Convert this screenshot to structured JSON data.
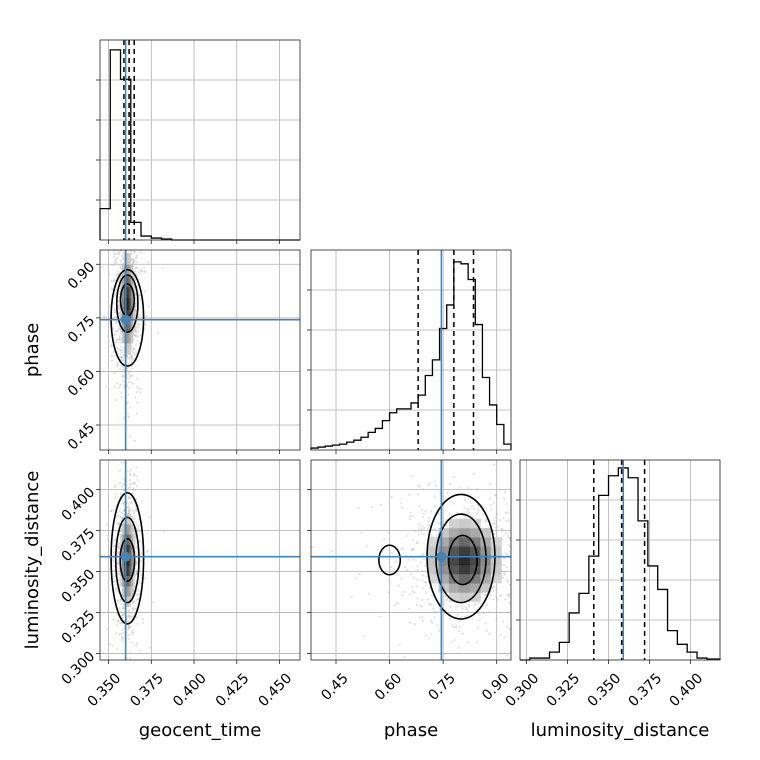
{
  "chart_data": {
    "type": "corner",
    "parameters": [
      "geocent_time",
      "phase",
      "luminosity_distance"
    ],
    "axis_labels": {
      "geocent_time": "geocent_time",
      "phase": "phase",
      "luminosity_distance": "luminosity_distance"
    },
    "ranges": {
      "geocent_time": [
        0.345,
        0.462
      ],
      "phase": [
        0.38,
        0.94
      ],
      "luminosity_distance": [
        0.296,
        0.418
      ]
    },
    "ticks": {
      "geocent_time": [
        "0.350",
        "0.375",
        "0.400",
        "0.425",
        "0.450"
      ],
      "phase": [
        "0.45",
        "0.60",
        "0.75",
        "0.90"
      ],
      "luminosity_distance": [
        "0.300",
        "0.325",
        "0.350",
        "0.375",
        "0.400"
      ]
    },
    "truths": {
      "geocent_time": 0.36,
      "phase": 0.745,
      "luminosity_distance": 0.359
    },
    "quantiles": {
      "geocent_time": [
        0.359,
        0.362,
        0.365
      ],
      "phase": [
        0.68,
        0.78,
        0.835
      ],
      "luminosity_distance": [
        0.341,
        0.358,
        0.372
      ]
    },
    "histograms": {
      "geocent_time": {
        "bin_edges": [
          0.345,
          0.351,
          0.357,
          0.363,
          0.369,
          0.375,
          0.381,
          0.387,
          0.462
        ],
        "counts": [
          0.16,
          0.97,
          0.82,
          0.09,
          0.02,
          0.01,
          0.005,
          0.0
        ]
      },
      "phase": {
        "bin_edges": [
          0.38,
          0.4,
          0.42,
          0.44,
          0.46,
          0.48,
          0.5,
          0.52,
          0.54,
          0.56,
          0.58,
          0.6,
          0.62,
          0.64,
          0.66,
          0.68,
          0.7,
          0.72,
          0.74,
          0.76,
          0.78,
          0.8,
          0.82,
          0.84,
          0.86,
          0.88,
          0.9,
          0.92,
          0.94
        ],
        "counts": [
          0.01,
          0.015,
          0.02,
          0.025,
          0.03,
          0.04,
          0.05,
          0.065,
          0.09,
          0.11,
          0.15,
          0.19,
          0.21,
          0.21,
          0.24,
          0.28,
          0.38,
          0.46,
          0.62,
          0.74,
          0.96,
          0.95,
          0.87,
          0.64,
          0.37,
          0.23,
          0.13,
          0.03
        ]
      },
      "luminosity_distance": {
        "bin_edges": [
          0.296,
          0.302,
          0.308,
          0.314,
          0.32,
          0.326,
          0.332,
          0.338,
          0.344,
          0.35,
          0.356,
          0.362,
          0.368,
          0.374,
          0.38,
          0.386,
          0.392,
          0.398,
          0.404,
          0.41,
          0.418
        ],
        "counts": [
          0.0,
          0.01,
          0.01,
          0.04,
          0.09,
          0.24,
          0.34,
          0.53,
          0.84,
          0.94,
          0.98,
          0.93,
          0.71,
          0.48,
          0.36,
          0.15,
          0.08,
          0.04,
          0.01,
          0.005
        ]
      }
    },
    "density_2d": {
      "geocent_time__phase": {
        "x_center": 0.361,
        "y_center": 0.79,
        "x_sigma": 0.0028,
        "y_sigma": 0.09,
        "contours": [
          {
            "x_center": 0.361,
            "y_center": 0.75,
            "x_half": 0.0095,
            "y_half": 0.135,
            "bands": [
              [
                0.88,
                0.0095
              ],
              [
                0.8,
                0.009
              ],
              [
                0.7,
                0.007
              ],
              [
                0.6,
                0.004
              ]
            ]
          },
          {
            "x_center": 0.361,
            "y_center": 0.79,
            "x_half": 0.0062,
            "y_half": 0.08
          },
          {
            "x_center": 0.361,
            "y_center": 0.8,
            "x_half": 0.004,
            "y_half": 0.045
          }
        ]
      },
      "geocent_time__luminosity_distance": {
        "x_center": 0.361,
        "y_center": 0.357,
        "x_sigma": 0.0028,
        "y_sigma": 0.018,
        "contours": [
          {
            "x_center": 0.361,
            "y_center": 0.358,
            "x_half": 0.0095,
            "y_half": 0.04
          },
          {
            "x_center": 0.361,
            "y_center": 0.357,
            "x_half": 0.0068,
            "y_half": 0.026
          },
          {
            "x_center": 0.361,
            "y_center": 0.357,
            "x_half": 0.0042,
            "y_half": 0.013
          }
        ]
      },
      "phase__luminosity_distance": {
        "x_center": 0.81,
        "y_center": 0.357,
        "x_sigma": 0.065,
        "y_sigma": 0.016,
        "contours": [
          {
            "x_center": 0.8,
            "y_center": 0.359,
            "x_half": 0.095,
            "y_half": 0.038
          },
          {
            "x_center": 0.8,
            "y_center": 0.358,
            "x_half": 0.07,
            "y_half": 0.027
          },
          {
            "x_center": 0.805,
            "y_center": 0.357,
            "x_half": 0.04,
            "y_half": 0.015
          },
          {
            "x_center": 0.6,
            "y_center": 0.357,
            "x_half": 0.03,
            "y_half": 0.009
          }
        ]
      }
    },
    "truth_color": "#4682b4",
    "hist_color": "#000000",
    "sample_color": "#bfbfbf",
    "grid": true
  }
}
